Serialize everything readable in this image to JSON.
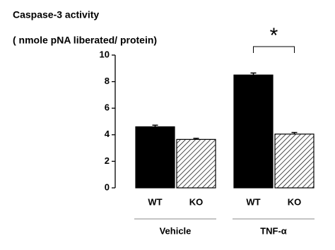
{
  "chart_data": {
    "type": "bar",
    "title": "Caspase-3 activity",
    "subtitle": "( nmole pNA liberated/ protein)",
    "categories": [
      "WT",
      "KO",
      "WT",
      "KO"
    ],
    "groups": [
      "Vehicle",
      "TNF-α"
    ],
    "values": [
      4.6,
      3.65,
      8.5,
      4.05
    ],
    "errors": [
      0.12,
      0.08,
      0.15,
      0.12
    ],
    "bar_styles": [
      "solid",
      "hatched",
      "solid",
      "hatched"
    ],
    "color": "#000000",
    "annotation": "*",
    "ylim": [
      0,
      10
    ],
    "yticks": [
      0,
      2,
      4,
      6,
      8,
      10
    ],
    "grid": false
  }
}
